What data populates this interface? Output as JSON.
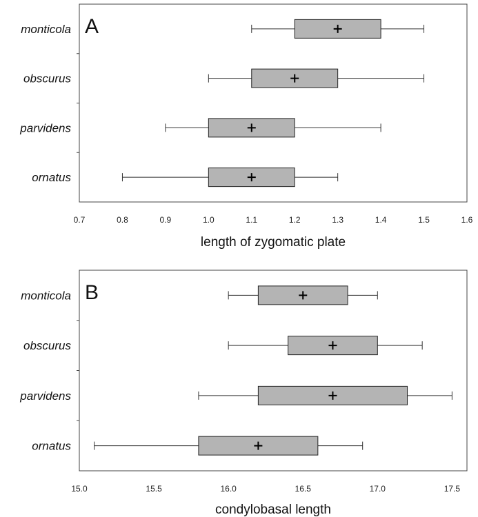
{
  "chart_data": [
    {
      "type": "box",
      "panel_label": "A",
      "xlabel": "length of zygomatic plate",
      "xlim": [
        0.7,
        1.6
      ],
      "ticks": [
        "0.7",
        "0.8",
        "0.9",
        "1.0",
        "1.1",
        "1.2",
        "1.3",
        "1.4",
        "1.5",
        "1.6"
      ],
      "categories": [
        "monticola",
        "obscurus",
        "parvidens",
        "ornatus"
      ],
      "boxes": [
        {
          "category": "monticola",
          "min": 1.1,
          "q1": 1.2,
          "mean": 1.3,
          "q3": 1.4,
          "max": 1.5
        },
        {
          "category": "obscurus",
          "min": 1.0,
          "q1": 1.1,
          "mean": 1.2,
          "q3": 1.3,
          "max": 1.5
        },
        {
          "category": "parvidens",
          "min": 0.9,
          "q1": 1.0,
          "mean": 1.1,
          "q3": 1.2,
          "max": 1.4
        },
        {
          "category": "ornatus",
          "min": 0.8,
          "q1": 1.0,
          "mean": 1.1,
          "q3": 1.2,
          "max": 1.3
        }
      ],
      "box_color": "#b4b4b4"
    },
    {
      "type": "box",
      "panel_label": "B",
      "xlabel": "condylobasal length",
      "xlim": [
        15.0,
        17.6
      ],
      "ticks": [
        "15.0",
        "15.5",
        "16.0",
        "16.5",
        "17.0",
        "17.5"
      ],
      "categories": [
        "monticola",
        "obscurus",
        "parvidens",
        "ornatus"
      ],
      "boxes": [
        {
          "category": "monticola",
          "min": 16.0,
          "q1": 16.2,
          "mean": 16.5,
          "q3": 16.8,
          "max": 17.0
        },
        {
          "category": "obscurus",
          "min": 16.0,
          "q1": 16.4,
          "mean": 16.7,
          "q3": 17.0,
          "max": 17.3
        },
        {
          "category": "parvidens",
          "min": 15.8,
          "q1": 16.2,
          "mean": 16.7,
          "q3": 17.2,
          "max": 17.5
        },
        {
          "category": "ornatus",
          "min": 15.1,
          "q1": 15.8,
          "mean": 16.2,
          "q3": 16.6,
          "max": 16.9
        }
      ],
      "box_color": "#b4b4b4"
    }
  ]
}
